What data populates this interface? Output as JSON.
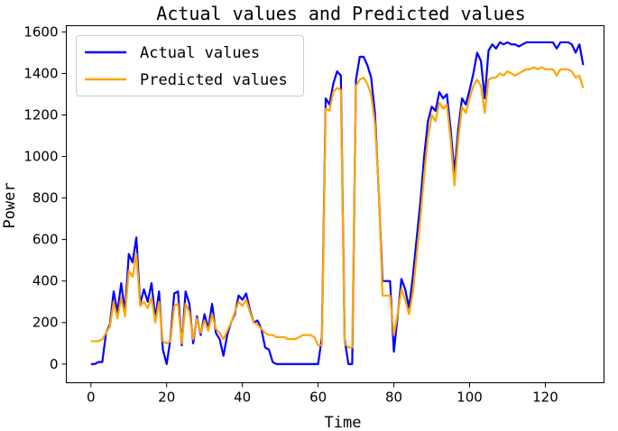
{
  "chart_data": {
    "type": "line",
    "title": "Actual values and Predicted values",
    "xlabel": "Time",
    "ylabel": "Power",
    "xlim": [
      -6.5,
      135.5
    ],
    "ylim": [
      -90,
      1630
    ],
    "xticks": [
      0,
      20,
      40,
      60,
      80,
      100,
      120
    ],
    "yticks": [
      0,
      200,
      400,
      600,
      800,
      1000,
      1200,
      1400,
      1600
    ],
    "grid": false,
    "legend_position": "top-left",
    "series": [
      {
        "name": "Actual values",
        "color": "#0000ff",
        "values": [
          0,
          0,
          10,
          10,
          150,
          190,
          350,
          250,
          390,
          250,
          530,
          490,
          610,
          290,
          360,
          300,
          390,
          220,
          350,
          70,
          0,
          120,
          340,
          350,
          90,
          350,
          290,
          100,
          230,
          140,
          240,
          170,
          290,
          150,
          120,
          40,
          140,
          200,
          240,
          330,
          310,
          340,
          260,
          200,
          210,
          170,
          80,
          70,
          10,
          0,
          0,
          0,
          0,
          0,
          0,
          0,
          0,
          0,
          0,
          0,
          0,
          130,
          1280,
          1250,
          1350,
          1410,
          1390,
          120,
          0,
          0,
          1370,
          1480,
          1480,
          1440,
          1380,
          1210,
          840,
          400,
          400,
          400,
          60,
          230,
          410,
          360,
          270,
          420,
          600,
          780,
          1000,
          1170,
          1240,
          1220,
          1310,
          1280,
          1300,
          1130,
          920,
          1130,
          1280,
          1250,
          1320,
          1400,
          1500,
          1460,
          1280,
          1510,
          1540,
          1520,
          1550,
          1540,
          1550,
          1540,
          1540,
          1530,
          1540,
          1550,
          1550,
          1550,
          1550,
          1550,
          1550,
          1550,
          1550,
          1520,
          1550,
          1550,
          1550,
          1540,
          1500,
          1540,
          1440
        ]
      },
      {
        "name": "Predicted values",
        "color": "#ffa500",
        "values": [
          110,
          110,
          110,
          120,
          150,
          180,
          300,
          220,
          320,
          230,
          450,
          420,
          530,
          280,
          300,
          270,
          320,
          200,
          300,
          110,
          100,
          110,
          280,
          290,
          100,
          290,
          250,
          120,
          220,
          150,
          210,
          160,
          240,
          170,
          150,
          120,
          160,
          200,
          250,
          300,
          280,
          310,
          250,
          200,
          190,
          170,
          150,
          140,
          140,
          130,
          130,
          130,
          120,
          120,
          120,
          130,
          140,
          140,
          140,
          130,
          90,
          90,
          1230,
          1220,
          1310,
          1330,
          1320,
          100,
          80,
          80,
          1340,
          1370,
          1380,
          1350,
          1300,
          1160,
          860,
          330,
          330,
          330,
          140,
          240,
          360,
          310,
          240,
          340,
          520,
          700,
          910,
          1090,
          1200,
          1170,
          1260,
          1230,
          1250,
          1080,
          860,
          1080,
          1240,
          1210,
          1280,
          1340,
          1370,
          1340,
          1210,
          1370,
          1380,
          1380,
          1400,
          1390,
          1410,
          1400,
          1390,
          1400,
          1410,
          1420,
          1420,
          1430,
          1420,
          1430,
          1420,
          1420,
          1420,
          1390,
          1420,
          1420,
          1420,
          1410,
          1380,
          1390,
          1330
        ]
      }
    ]
  }
}
